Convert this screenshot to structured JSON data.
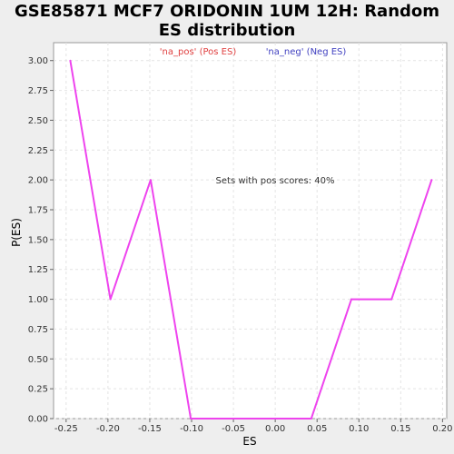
{
  "chart_data": {
    "type": "line",
    "title_line1": "GSE85871 MCF7 ORIDONIN 1UM 12H: Random",
    "title_line2": "ES distribution",
    "xlabel": "ES",
    "ylabel": "P(ES)",
    "xlim": [
      -0.265,
      0.205
    ],
    "ylim": [
      0.0,
      3.15
    ],
    "x_ticks": [
      "-0.25",
      "-0.20",
      "-0.15",
      "-0.10",
      "-0.05",
      "0.00",
      "0.05",
      "0.10",
      "0.15",
      "0.20"
    ],
    "x_tick_values": [
      -0.25,
      -0.2,
      -0.15,
      -0.1,
      -0.05,
      0.0,
      0.05,
      0.1,
      0.15,
      0.2
    ],
    "y_ticks": [
      "0.00",
      "0.25",
      "0.50",
      "0.75",
      "1.00",
      "1.25",
      "1.50",
      "1.75",
      "2.00",
      "2.25",
      "2.50",
      "2.75",
      "3.00"
    ],
    "y_tick_values": [
      0.0,
      0.25,
      0.5,
      0.75,
      1.0,
      1.25,
      1.5,
      1.75,
      2.0,
      2.25,
      2.5,
      2.75,
      3.0
    ],
    "legend": [
      {
        "label": "'na_pos' (Pos ES)",
        "color": "#e04040"
      },
      {
        "label": "'na_neg' (Neg ES)",
        "color": "#4040c0"
      }
    ],
    "annotation": "Sets with pos scores: 40%",
    "grid": true,
    "series": [
      {
        "color": "#ee44ee",
        "x": [
          -0.245,
          -0.197,
          -0.149,
          -0.101,
          -0.053,
          -0.005,
          0.043,
          0.091,
          0.139,
          0.187
        ],
        "y": [
          3.0,
          1.0,
          2.0,
          0.0,
          0.0,
          0.0,
          0.0,
          1.0,
          1.0,
          2.0
        ]
      }
    ]
  }
}
